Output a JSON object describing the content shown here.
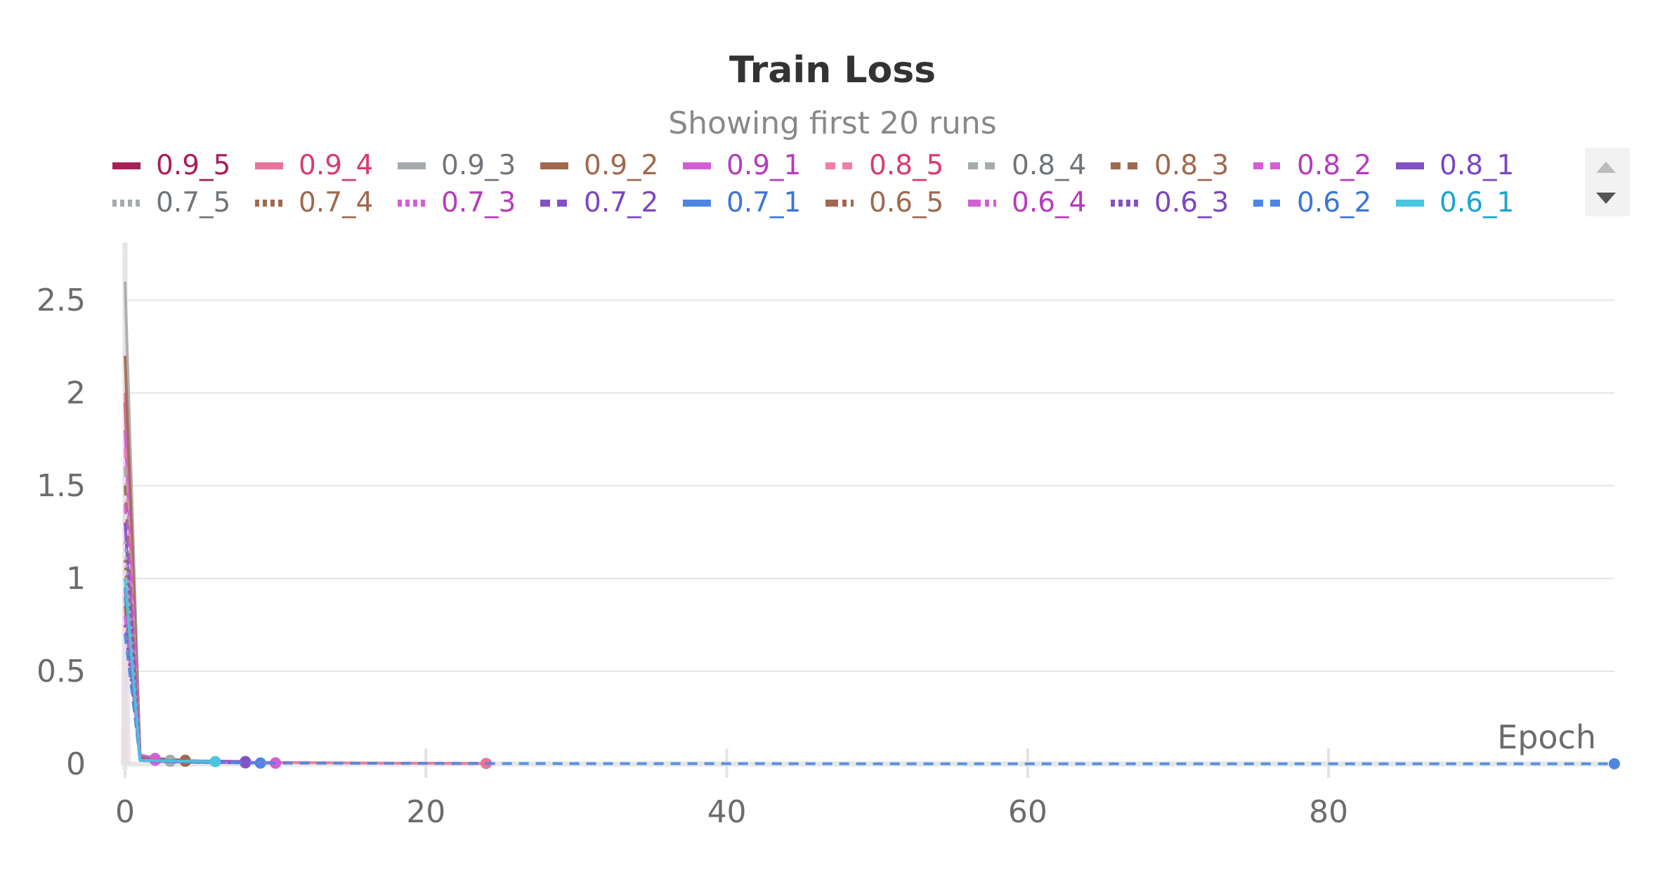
{
  "panel": {
    "title": "Train Loss",
    "subtitle": "Showing first 20 runs"
  },
  "legend": [
    {
      "name": "0.9_5",
      "color": "#a6205a",
      "dash": "solid"
    },
    {
      "name": "0.9_4",
      "color": "#e8749a",
      "dash": "solid"
    },
    {
      "name": "0.9_3",
      "color": "#a5aaad",
      "dash": "solid"
    },
    {
      "name": "0.9_2",
      "color": "#a0694e",
      "dash": "solid"
    },
    {
      "name": "0.9_1",
      "color": "#d45fd4",
      "dash": "solid"
    },
    {
      "name": "0.8_5",
      "color": "#ef7fa8",
      "dash": "dashed"
    },
    {
      "name": "0.8_4",
      "color": "#a5aaad",
      "dash": "dashed"
    },
    {
      "name": "0.8_3",
      "color": "#a0694e",
      "dash": "dashed"
    },
    {
      "name": "0.8_2",
      "color": "#d45fd4",
      "dash": "dashed"
    },
    {
      "name": "0.8_1",
      "color": "#8451c4",
      "dash": "solid"
    },
    {
      "name": "0.7_5",
      "color": "#a5aaad",
      "dash": "dotted"
    },
    {
      "name": "0.7_4",
      "color": "#a0694e",
      "dash": "dotted"
    },
    {
      "name": "0.7_3",
      "color": "#d45fd4",
      "dash": "dotted"
    },
    {
      "name": "0.7_2",
      "color": "#8451c4",
      "dash": "dashed"
    },
    {
      "name": "0.7_1",
      "color": "#4d86e0",
      "dash": "solid"
    },
    {
      "name": "0.6_5",
      "color": "#a0694e",
      "dash": "dashdot"
    },
    {
      "name": "0.6_4",
      "color": "#d45fd4",
      "dash": "dashdot"
    },
    {
      "name": "0.6_3",
      "color": "#8451c4",
      "dash": "dotted"
    },
    {
      "name": "0.6_2",
      "color": "#4d86e0",
      "dash": "dashed"
    },
    {
      "name": "0.6_1",
      "color": "#4ac7e0",
      "dash": "solid"
    }
  ],
  "legend_text_colors": {
    "#a6205a": "#a6205a",
    "#e8749a": "#d63c6f",
    "#ef7fa8": "#d63c6f",
    "#a5aaad": "#6f757a",
    "#a0694e": "#a0694e",
    "#d45fd4": "#b63bbd",
    "#8451c4": "#7a48c0",
    "#4d86e0": "#3b75d6",
    "#4ac7e0": "#1aa5cf"
  },
  "chart_data": {
    "type": "line",
    "title": "Train Loss",
    "subtitle": "Showing first 20 runs",
    "xlabel": "Epoch",
    "ylabel": "",
    "xlim": [
      0,
      99
    ],
    "ylim": [
      0,
      2.8
    ],
    "x_ticks": [
      0,
      20,
      40,
      60,
      80
    ],
    "y_ticks": [
      0,
      0.5,
      1,
      1.5,
      2,
      2.5
    ],
    "grid": true,
    "legend_position": "top",
    "series": [
      {
        "name": "0.9_5",
        "x": [
          0,
          1,
          2,
          3,
          4,
          5,
          6,
          7,
          8,
          9,
          10
        ],
        "y": [
          1.95,
          0.03,
          0.02,
          0.015,
          0.012,
          0.01,
          0.009,
          0.008,
          0.007,
          0.006,
          0.005
        ]
      },
      {
        "name": "0.9_4",
        "x": [
          0,
          1,
          2,
          4,
          6,
          8,
          10,
          12,
          14,
          16,
          18,
          20,
          22,
          24
        ],
        "y": [
          2.0,
          0.04,
          0.02,
          0.015,
          0.012,
          0.01,
          0.008,
          0.007,
          0.006,
          0.005,
          0.004,
          0.004,
          0.003,
          0.003
        ]
      },
      {
        "name": "0.9_3",
        "x": [
          0,
          1,
          2,
          3
        ],
        "y": [
          2.6,
          0.03,
          0.025,
          0.02
        ]
      },
      {
        "name": "0.9_2",
        "x": [
          0,
          1,
          2,
          3,
          4
        ],
        "y": [
          2.2,
          0.04,
          0.03,
          0.025,
          0.02
        ]
      },
      {
        "name": "0.9_1",
        "x": [
          0,
          1,
          2
        ],
        "y": [
          1.8,
          0.05,
          0.03
        ]
      },
      {
        "name": "0.8_5",
        "x": [
          0,
          1,
          2,
          3
        ],
        "y": [
          1.7,
          0.03,
          0.02,
          0.015
        ]
      },
      {
        "name": "0.8_4",
        "x": [
          0,
          1,
          2,
          3
        ],
        "y": [
          1.6,
          0.03,
          0.02,
          0.018
        ]
      },
      {
        "name": "0.8_3",
        "x": [
          0,
          1,
          2,
          3,
          4
        ],
        "y": [
          1.5,
          0.035,
          0.025,
          0.02,
          0.018
        ]
      },
      {
        "name": "0.8_2",
        "x": [
          0,
          1,
          2,
          3,
          4,
          5,
          6,
          7,
          8,
          9,
          10
        ],
        "y": [
          1.4,
          0.03,
          0.02,
          0.015,
          0.012,
          0.01,
          0.009,
          0.008,
          0.007,
          0.006,
          0.005
        ]
      },
      {
        "name": "0.8_1",
        "x": [
          0,
          1,
          2,
          3,
          4,
          5,
          6,
          7,
          8
        ],
        "y": [
          1.3,
          0.03,
          0.025,
          0.02,
          0.018,
          0.016,
          0.015,
          0.014,
          0.013
        ]
      },
      {
        "name": "0.7_5",
        "x": [
          0,
          1,
          2,
          3
        ],
        "y": [
          1.2,
          0.025,
          0.02,
          0.015
        ]
      },
      {
        "name": "0.7_4",
        "x": [
          0,
          1,
          2,
          3,
          4
        ],
        "y": [
          1.1,
          0.03,
          0.02,
          0.018,
          0.015
        ]
      },
      {
        "name": "0.7_3",
        "x": [
          0,
          1,
          2
        ],
        "y": [
          1.0,
          0.03,
          0.02
        ]
      },
      {
        "name": "0.7_2",
        "x": [
          0,
          1,
          2,
          3,
          4,
          5,
          6,
          7,
          8
        ],
        "y": [
          0.95,
          0.025,
          0.02,
          0.018,
          0.016,
          0.014,
          0.013,
          0.012,
          0.011
        ]
      },
      {
        "name": "0.7_1",
        "x": [
          0,
          1,
          2,
          3,
          4,
          5,
          6,
          7,
          8,
          9
        ],
        "y": [
          0.9,
          0.02,
          0.015,
          0.012,
          0.01,
          0.009,
          0.008,
          0.007,
          0.006,
          0.005
        ]
      },
      {
        "name": "0.6_5",
        "x": [
          0,
          1,
          2,
          3,
          4
        ],
        "y": [
          0.85,
          0.025,
          0.02,
          0.017,
          0.015
        ]
      },
      {
        "name": "0.6_4",
        "x": [
          0,
          1,
          2,
          3,
          4,
          5,
          6,
          7,
          8,
          9,
          10
        ],
        "y": [
          0.8,
          0.02,
          0.015,
          0.012,
          0.01,
          0.009,
          0.008,
          0.007,
          0.006,
          0.005,
          0.005
        ]
      },
      {
        "name": "0.6_3",
        "x": [
          0,
          1,
          2,
          3,
          4,
          5,
          6,
          7,
          8
        ],
        "y": [
          0.75,
          0.02,
          0.015,
          0.012,
          0.01,
          0.009,
          0.008,
          0.007,
          0.006
        ]
      },
      {
        "name": "0.6_2",
        "x": [
          0,
          1,
          5,
          10,
          20,
          30,
          40,
          50,
          60,
          70,
          80,
          90,
          99
        ],
        "y": [
          0.7,
          0.02,
          0.01,
          0.005,
          0.003,
          0.002,
          0.002,
          0.001,
          0.001,
          0.001,
          0.001,
          0.001,
          0.001
        ]
      },
      {
        "name": "0.6_1",
        "x": [
          0,
          1,
          2,
          3,
          4,
          5,
          6
        ],
        "y": [
          1.0,
          0.02,
          0.018,
          0.016,
          0.015,
          0.014,
          0.013
        ]
      }
    ]
  }
}
